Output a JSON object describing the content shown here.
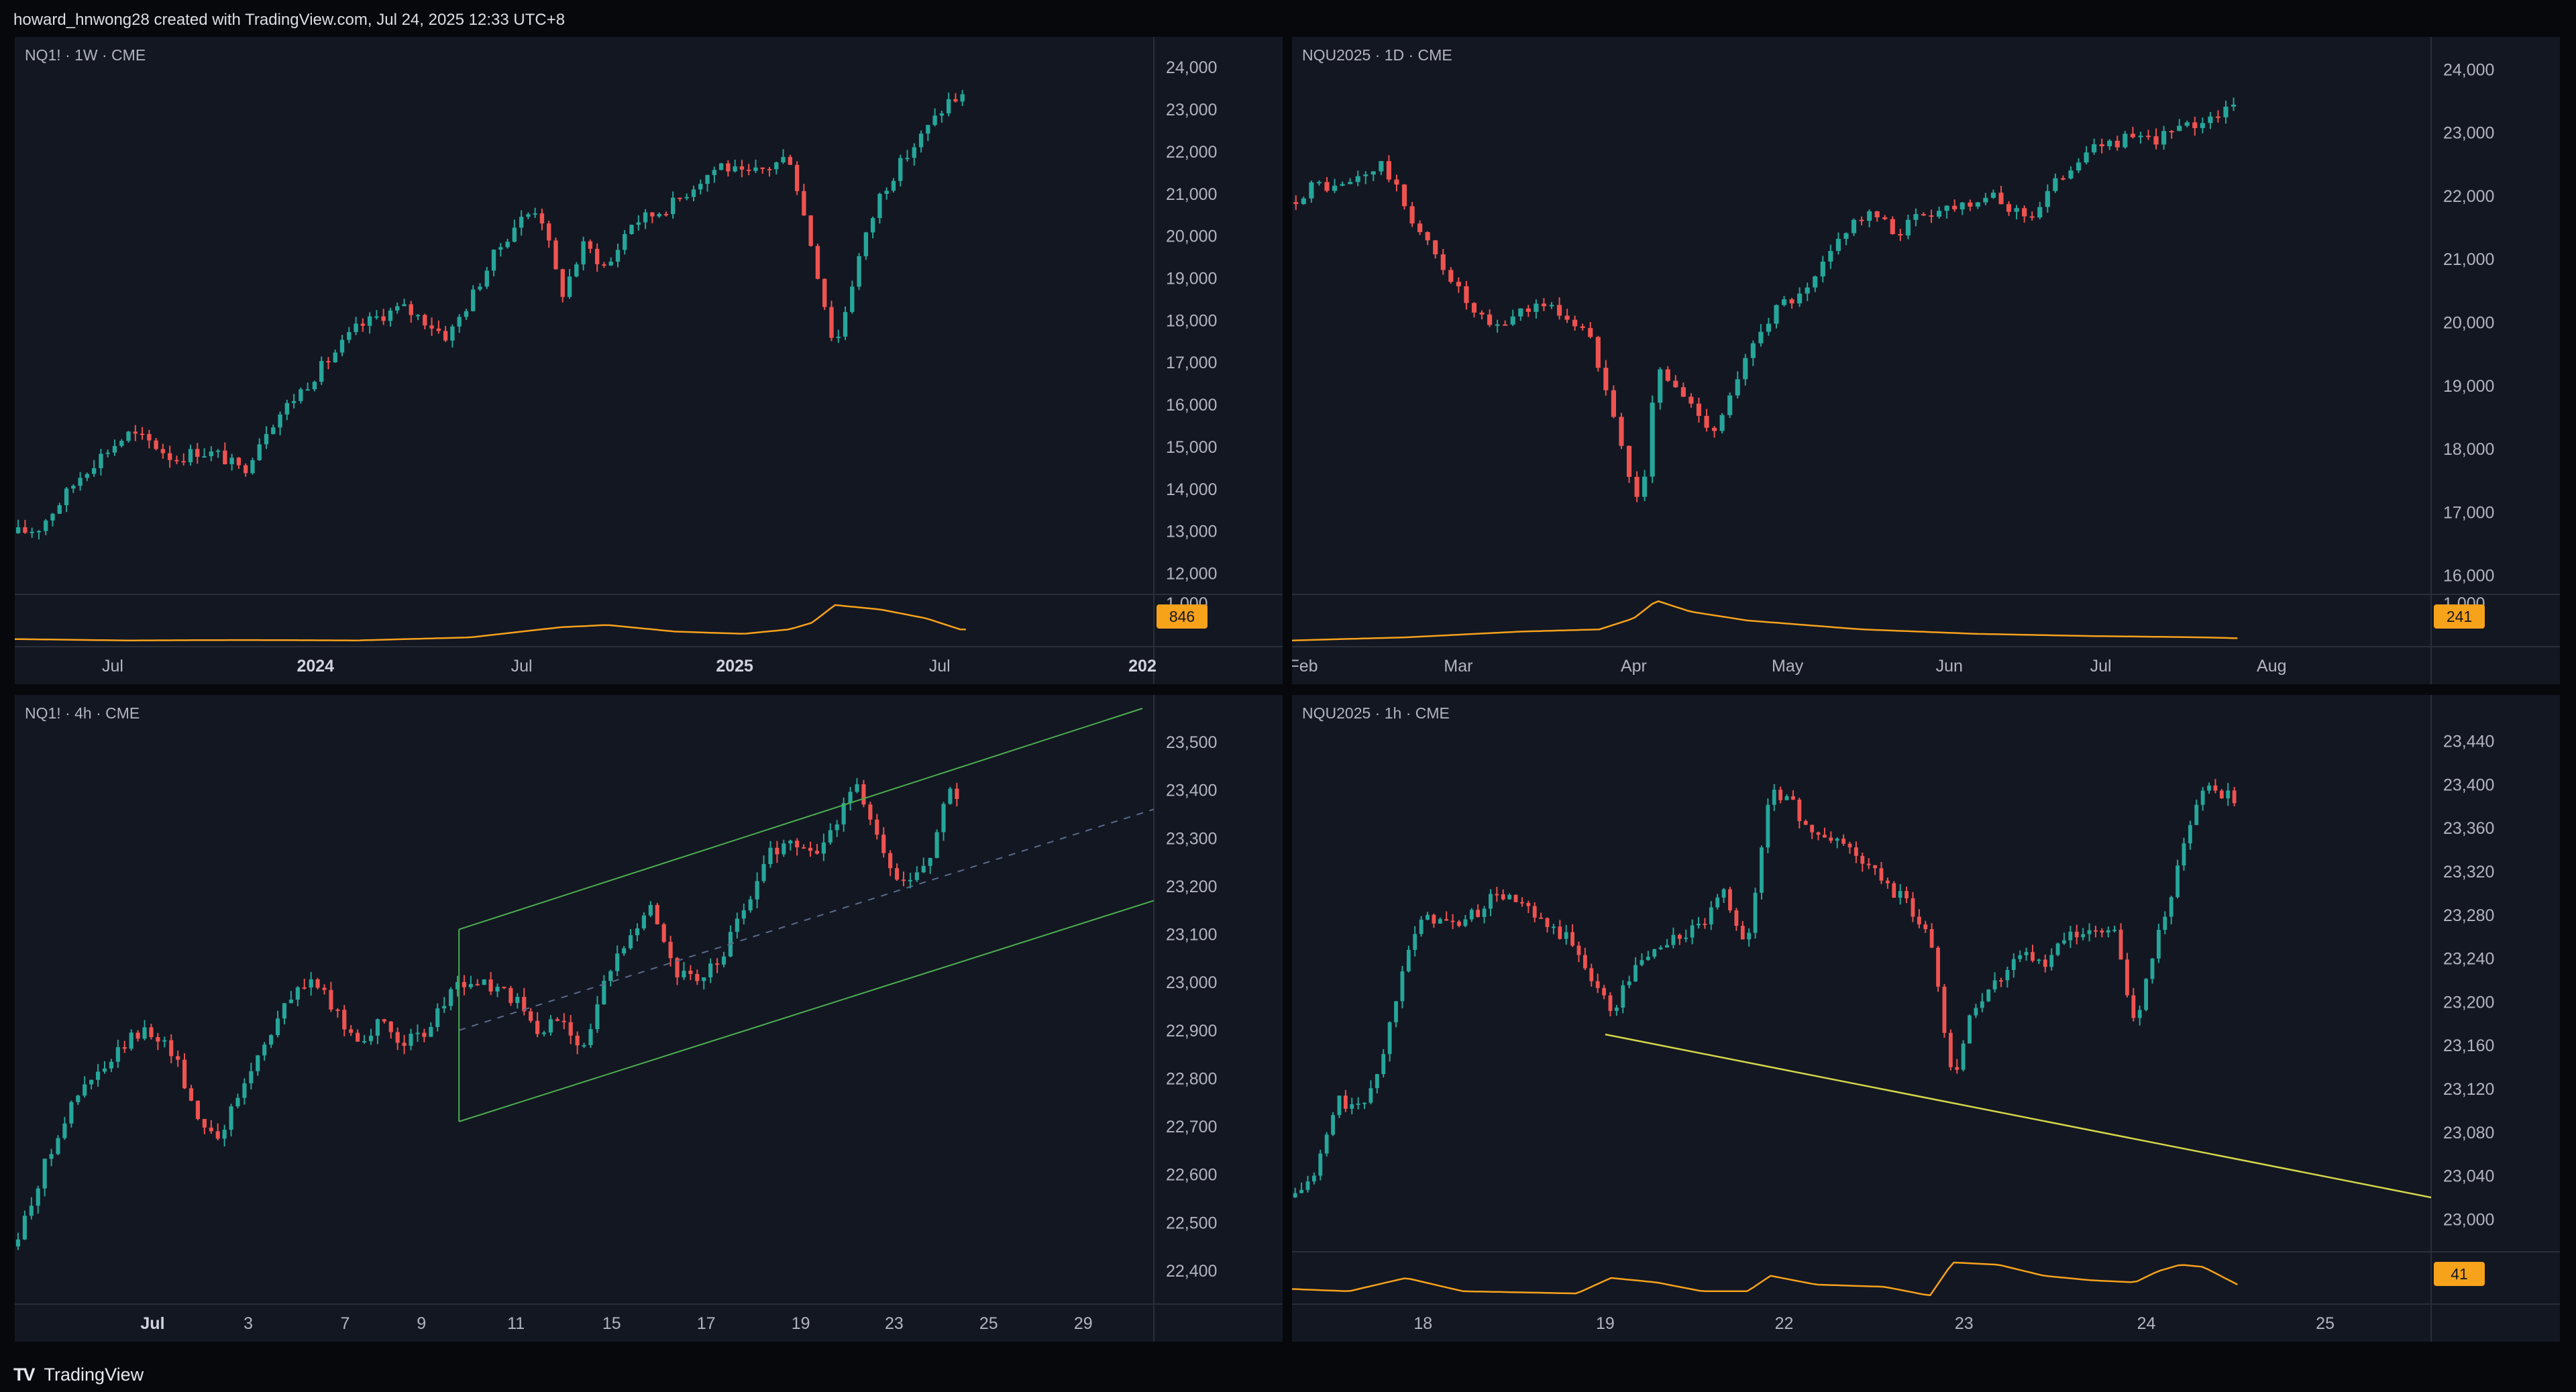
{
  "header": {
    "text": "howard_hnwong28 created with TradingView.com, Jul 24, 2025 12:33 UTC+8"
  },
  "footer": {
    "logo": "TV",
    "brand": "TradingView"
  },
  "colors": {
    "bg": "#131722",
    "up": "#26a69a",
    "down": "#ef5350",
    "volume": "#f7a21b",
    "channel": "#4caf50",
    "trendline": "#d4d64a"
  },
  "chart_data": [
    {
      "type": "candlestick",
      "title": "NQ1! · 1W · CME",
      "ylim": [
        11500,
        24400
      ],
      "yticks": [
        "24,000",
        "23,000",
        "22,000",
        "21,000",
        "20,000",
        "19,000",
        "18,000",
        "17,000",
        "16,000",
        "15,000",
        "14,000",
        "13,000",
        "12,000"
      ],
      "ytick_values": [
        24000,
        23000,
        22000,
        21000,
        20000,
        19000,
        18000,
        17000,
        16000,
        15000,
        14000,
        13000,
        12000
      ],
      "xticks": [
        {
          "label": "Jul",
          "pos": 0.086,
          "bold": false
        },
        {
          "label": "2024",
          "pos": 0.264,
          "bold": true
        },
        {
          "label": "Jul",
          "pos": 0.445,
          "bold": false
        },
        {
          "label": "2025",
          "pos": 0.632,
          "bold": true
        },
        {
          "label": "Jul",
          "pos": 0.812,
          "bold": false
        },
        {
          "label": "202",
          "pos": 0.99,
          "bold": true
        }
      ],
      "close_path": [
        [
          0.0,
          12950
        ],
        [
          0.02,
          13050
        ],
        [
          0.04,
          13700
        ],
        [
          0.06,
          14400
        ],
        [
          0.08,
          14900
        ],
        [
          0.1,
          15300
        ],
        [
          0.12,
          15100
        ],
        [
          0.14,
          14700
        ],
        [
          0.16,
          14900
        ],
        [
          0.18,
          14800
        ],
        [
          0.2,
          14400
        ],
        [
          0.22,
          15400
        ],
        [
          0.24,
          16000
        ],
        [
          0.26,
          16600
        ],
        [
          0.28,
          17200
        ],
        [
          0.3,
          17800
        ],
        [
          0.32,
          18100
        ],
        [
          0.34,
          18300
        ],
        [
          0.36,
          18000
        ],
        [
          0.38,
          17600
        ],
        [
          0.4,
          18500
        ],
        [
          0.42,
          19500
        ],
        [
          0.44,
          20300
        ],
        [
          0.46,
          20700
        ],
        [
          0.48,
          18600
        ],
        [
          0.5,
          19800
        ],
        [
          0.52,
          19200
        ],
        [
          0.54,
          20300
        ],
        [
          0.56,
          20500
        ],
        [
          0.58,
          20800
        ],
        [
          0.6,
          21300
        ],
        [
          0.62,
          21700
        ],
        [
          0.64,
          21400
        ],
        [
          0.66,
          21600
        ],
        [
          0.68,
          21900
        ],
        [
          0.7,
          19700
        ],
        [
          0.72,
          17300
        ],
        [
          0.74,
          19400
        ],
        [
          0.76,
          21000
        ],
        [
          0.78,
          21800
        ],
        [
          0.8,
          22500
        ],
        [
          0.82,
          23200
        ],
        [
          0.835,
          23300
        ]
      ],
      "vol_badge": "846",
      "vol_axis_label": "1,000",
      "volume_path": [
        [
          0,
          0.08
        ],
        [
          0.1,
          0.05
        ],
        [
          0.2,
          0.06
        ],
        [
          0.3,
          0.05
        ],
        [
          0.4,
          0.12
        ],
        [
          0.48,
          0.35
        ],
        [
          0.52,
          0.4
        ],
        [
          0.58,
          0.25
        ],
        [
          0.64,
          0.2
        ],
        [
          0.68,
          0.3
        ],
        [
          0.7,
          0.45
        ],
        [
          0.72,
          0.85
        ],
        [
          0.76,
          0.75
        ],
        [
          0.8,
          0.55
        ],
        [
          0.83,
          0.3
        ]
      ]
    },
    {
      "type": "candlestick",
      "title": "NQU2025 · 1D · CME",
      "ylim": [
        15700,
        24300
      ],
      "yticks": [
        "24,000",
        "23,000",
        "22,000",
        "21,000",
        "20,000",
        "19,000",
        "18,000",
        "17,000",
        "16,000"
      ],
      "ytick_values": [
        24000,
        23000,
        22000,
        21000,
        20000,
        19000,
        18000,
        17000,
        16000
      ],
      "xticks": [
        {
          "label": "Feb",
          "pos": 0.01,
          "bold": false
        },
        {
          "label": "Mar",
          "pos": 0.146,
          "bold": false
        },
        {
          "label": "Apr",
          "pos": 0.3,
          "bold": false
        },
        {
          "label": "May",
          "pos": 0.435,
          "bold": false
        },
        {
          "label": "Jun",
          "pos": 0.577,
          "bold": false
        },
        {
          "label": "Jul",
          "pos": 0.71,
          "bold": false
        },
        {
          "label": "Aug",
          "pos": 0.86,
          "bold": false
        }
      ],
      "close_path": [
        [
          0.0,
          21900
        ],
        [
          0.02,
          22200
        ],
        [
          0.04,
          22100
        ],
        [
          0.06,
          22300
        ],
        [
          0.08,
          22500
        ],
        [
          0.1,
          21800
        ],
        [
          0.12,
          21200
        ],
        [
          0.14,
          20700
        ],
        [
          0.16,
          20100
        ],
        [
          0.18,
          19900
        ],
        [
          0.2,
          20200
        ],
        [
          0.22,
          20300
        ],
        [
          0.24,
          20100
        ],
        [
          0.26,
          19800
        ],
        [
          0.28,
          18800
        ],
        [
          0.3,
          17200
        ],
        [
          0.31,
          17600
        ],
        [
          0.32,
          19300
        ],
        [
          0.33,
          19100
        ],
        [
          0.35,
          18700
        ],
        [
          0.37,
          18300
        ],
        [
          0.39,
          19000
        ],
        [
          0.41,
          19900
        ],
        [
          0.43,
          20300
        ],
        [
          0.45,
          20400
        ],
        [
          0.47,
          21000
        ],
        [
          0.49,
          21600
        ],
        [
          0.51,
          21700
        ],
        [
          0.53,
          21400
        ],
        [
          0.55,
          21700
        ],
        [
          0.57,
          21800
        ],
        [
          0.59,
          21900
        ],
        [
          0.61,
          22000
        ],
        [
          0.63,
          21800
        ],
        [
          0.65,
          21700
        ],
        [
          0.67,
          22200
        ],
        [
          0.69,
          22600
        ],
        [
          0.71,
          22800
        ],
        [
          0.73,
          22900
        ],
        [
          0.75,
          22850
        ],
        [
          0.77,
          23000
        ],
        [
          0.79,
          23100
        ],
        [
          0.81,
          23300
        ],
        [
          0.83,
          23400
        ]
      ],
      "vol_badge": "241",
      "vol_axis_label": "1,000",
      "volume_path": [
        [
          0,
          0.05
        ],
        [
          0.1,
          0.12
        ],
        [
          0.2,
          0.25
        ],
        [
          0.27,
          0.3
        ],
        [
          0.3,
          0.55
        ],
        [
          0.32,
          0.95
        ],
        [
          0.35,
          0.7
        ],
        [
          0.4,
          0.5
        ],
        [
          0.45,
          0.4
        ],
        [
          0.5,
          0.3
        ],
        [
          0.6,
          0.2
        ],
        [
          0.7,
          0.15
        ],
        [
          0.8,
          0.12
        ],
        [
          0.83,
          0.1
        ]
      ]
    },
    {
      "type": "candlestick",
      "title": "NQ1! · 4h · CME",
      "ylim": [
        22330,
        23570
      ],
      "yticks": [
        "23,500",
        "23,400",
        "23,300",
        "23,200",
        "23,100",
        "23,000",
        "22,900",
        "22,800",
        "22,700",
        "22,600",
        "22,500",
        "22,400"
      ],
      "ytick_values": [
        23500,
        23400,
        23300,
        23200,
        23100,
        23000,
        22900,
        22800,
        22700,
        22600,
        22500,
        22400
      ],
      "xticks": [
        {
          "label": "Jul",
          "pos": 0.121,
          "bold": true
        },
        {
          "label": "3",
          "pos": 0.205,
          "bold": false
        },
        {
          "label": "7",
          "pos": 0.29,
          "bold": false
        },
        {
          "label": "9",
          "pos": 0.357,
          "bold": false
        },
        {
          "label": "11",
          "pos": 0.44,
          "bold": false
        },
        {
          "label": "15",
          "pos": 0.524,
          "bold": false
        },
        {
          "label": "17",
          "pos": 0.607,
          "bold": false
        },
        {
          "label": "19",
          "pos": 0.69,
          "bold": false
        },
        {
          "label": "23",
          "pos": 0.772,
          "bold": false
        },
        {
          "label": "25",
          "pos": 0.855,
          "bold": false
        },
        {
          "label": "29",
          "pos": 0.938,
          "bold": false
        }
      ],
      "close_path": [
        [
          0.0,
          22450
        ],
        [
          0.02,
          22580
        ],
        [
          0.04,
          22700
        ],
        [
          0.06,
          22780
        ],
        [
          0.08,
          22820
        ],
        [
          0.1,
          22880
        ],
        [
          0.12,
          22900
        ],
        [
          0.14,
          22850
        ],
        [
          0.16,
          22720
        ],
        [
          0.18,
          22680
        ],
        [
          0.2,
          22780
        ],
        [
          0.22,
          22880
        ],
        [
          0.24,
          22960
        ],
        [
          0.26,
          23010
        ],
        [
          0.28,
          22940
        ],
        [
          0.3,
          22880
        ],
        [
          0.32,
          22910
        ],
        [
          0.34,
          22880
        ],
        [
          0.36,
          22880
        ],
        [
          0.38,
          22980
        ],
        [
          0.4,
          23000
        ],
        [
          0.42,
          22990
        ],
        [
          0.44,
          22960
        ],
        [
          0.46,
          22890
        ],
        [
          0.48,
          22930
        ],
        [
          0.5,
          22860
        ],
        [
          0.52,
          23010
        ],
        [
          0.54,
          23110
        ],
        [
          0.56,
          23160
        ],
        [
          0.58,
          23020
        ],
        [
          0.6,
          23000
        ],
        [
          0.62,
          23050
        ],
        [
          0.64,
          23150
        ],
        [
          0.66,
          23260
        ],
        [
          0.68,
          23300
        ],
        [
          0.7,
          23260
        ],
        [
          0.72,
          23330
        ],
        [
          0.74,
          23420
        ],
        [
          0.76,
          23270
        ],
        [
          0.78,
          23200
        ],
        [
          0.8,
          23240
        ],
        [
          0.82,
          23410
        ],
        [
          0.83,
          23380
        ]
      ],
      "channel": {
        "upper": [
          [
            0.39,
            23110
          ],
          [
            0.99,
            23570
          ]
        ],
        "middle": [
          [
            0.39,
            22900
          ],
          [
            1.0,
            23360
          ]
        ],
        "lower": [
          [
            0.39,
            22710
          ],
          [
            1.0,
            23170
          ]
        ]
      }
    },
    {
      "type": "candlestick",
      "title": "NQU2025 · 1h · CME",
      "ylim": [
        22970,
        23470
      ],
      "yticks": [
        "23,440",
        "23,400",
        "23,360",
        "23,320",
        "23,280",
        "23,240",
        "23,200",
        "23,160",
        "23,120",
        "23,080",
        "23,040",
        "23,000"
      ],
      "ytick_values": [
        23440,
        23400,
        23360,
        23320,
        23280,
        23240,
        23200,
        23160,
        23120,
        23080,
        23040,
        23000
      ],
      "xticks": [
        {
          "label": "18",
          "pos": 0.115,
          "bold": false
        },
        {
          "label": "19",
          "pos": 0.275,
          "bold": false
        },
        {
          "label": "22",
          "pos": 0.432,
          "bold": false
        },
        {
          "label": "23",
          "pos": 0.59,
          "bold": false
        },
        {
          "label": "24",
          "pos": 0.75,
          "bold": false
        },
        {
          "label": "25",
          "pos": 0.907,
          "bold": false
        }
      ],
      "close_path": [
        [
          0.0,
          23020
        ],
        [
          0.02,
          23040
        ],
        [
          0.04,
          23110
        ],
        [
          0.06,
          23100
        ],
        [
          0.08,
          23150
        ],
        [
          0.1,
          23250
        ],
        [
          0.12,
          23280
        ],
        [
          0.14,
          23270
        ],
        [
          0.16,
          23280
        ],
        [
          0.18,
          23300
        ],
        [
          0.2,
          23290
        ],
        [
          0.22,
          23270
        ],
        [
          0.24,
          23260
        ],
        [
          0.26,
          23230
        ],
        [
          0.28,
          23190
        ],
        [
          0.3,
          23230
        ],
        [
          0.32,
          23250
        ],
        [
          0.34,
          23260
        ],
        [
          0.36,
          23270
        ],
        [
          0.38,
          23300
        ],
        [
          0.4,
          23250
        ],
        [
          0.42,
          23400
        ],
        [
          0.44,
          23380
        ],
        [
          0.46,
          23350
        ],
        [
          0.48,
          23350
        ],
        [
          0.5,
          23330
        ],
        [
          0.52,
          23310
        ],
        [
          0.54,
          23290
        ],
        [
          0.56,
          23260
        ],
        [
          0.58,
          23130
        ],
        [
          0.6,
          23200
        ],
        [
          0.62,
          23220
        ],
        [
          0.64,
          23250
        ],
        [
          0.66,
          23230
        ],
        [
          0.68,
          23260
        ],
        [
          0.7,
          23260
        ],
        [
          0.72,
          23270
        ],
        [
          0.74,
          23180
        ],
        [
          0.76,
          23260
        ],
        [
          0.78,
          23330
        ],
        [
          0.8,
          23400
        ],
        [
          0.82,
          23390
        ],
        [
          0.83,
          23380
        ]
      ],
      "trendline": [
        [
          0.275,
          23170
        ],
        [
          1.0,
          23020
        ]
      ],
      "vol_badge": "41",
      "volume_path": [
        [
          0,
          0.25
        ],
        [
          0.05,
          0.2
        ],
        [
          0.1,
          0.5
        ],
        [
          0.15,
          0.2
        ],
        [
          0.25,
          0.15
        ],
        [
          0.28,
          0.5
        ],
        [
          0.32,
          0.4
        ],
        [
          0.36,
          0.2
        ],
        [
          0.4,
          0.2
        ],
        [
          0.42,
          0.55
        ],
        [
          0.46,
          0.35
        ],
        [
          0.52,
          0.3
        ],
        [
          0.56,
          0.1
        ],
        [
          0.58,
          0.85
        ],
        [
          0.62,
          0.8
        ],
        [
          0.66,
          0.55
        ],
        [
          0.7,
          0.45
        ],
        [
          0.74,
          0.4
        ],
        [
          0.76,
          0.65
        ],
        [
          0.78,
          0.8
        ],
        [
          0.8,
          0.75
        ],
        [
          0.83,
          0.35
        ]
      ]
    }
  ]
}
